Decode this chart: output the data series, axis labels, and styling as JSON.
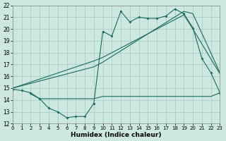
{
  "bg_color": "#cce8e0",
  "grid_color": "#aacfc8",
  "line_color": "#1a6b5a",
  "xlabel": "Humidex (Indice chaleur)",
  "xlim": [
    0,
    23
  ],
  "ylim": [
    12,
    22
  ],
  "yticks": [
    12,
    13,
    14,
    15,
    16,
    17,
    18,
    19,
    20,
    21,
    22
  ],
  "xticks": [
    0,
    1,
    2,
    3,
    4,
    5,
    6,
    7,
    8,
    9,
    10,
    11,
    12,
    13,
    14,
    15,
    16,
    17,
    18,
    19,
    20,
    21,
    22,
    23
  ],
  "s1_x": [
    0,
    1,
    2,
    3,
    4,
    5,
    6,
    7,
    8,
    9,
    10,
    11,
    12,
    13,
    14,
    15,
    16,
    17,
    18,
    19,
    20,
    21,
    22,
    23
  ],
  "s1_y": [
    14.9,
    14.8,
    14.6,
    14.1,
    13.3,
    13.0,
    12.5,
    12.6,
    12.6,
    13.7,
    19.8,
    19.4,
    21.5,
    20.6,
    21.0,
    20.9,
    20.9,
    21.1,
    21.7,
    21.3,
    20.1,
    17.5,
    16.3,
    14.6
  ],
  "s2_x": [
    0,
    9,
    10,
    19,
    20,
    23
  ],
  "s2_y": [
    15.0,
    17.3,
    17.6,
    21.2,
    20.0,
    16.2
  ],
  "s3_x": [
    0,
    9,
    10,
    19,
    20,
    23
  ],
  "s3_y": [
    15.0,
    16.8,
    17.2,
    21.5,
    21.3,
    16.3
  ],
  "s4_x": [
    2,
    3,
    9,
    10,
    14,
    15,
    16,
    17,
    18,
    19,
    20,
    21,
    22,
    23
  ],
  "s4_y": [
    14.5,
    14.1,
    14.1,
    14.3,
    14.3,
    14.3,
    14.3,
    14.3,
    14.3,
    14.3,
    14.3,
    14.3,
    14.3,
    14.6
  ]
}
